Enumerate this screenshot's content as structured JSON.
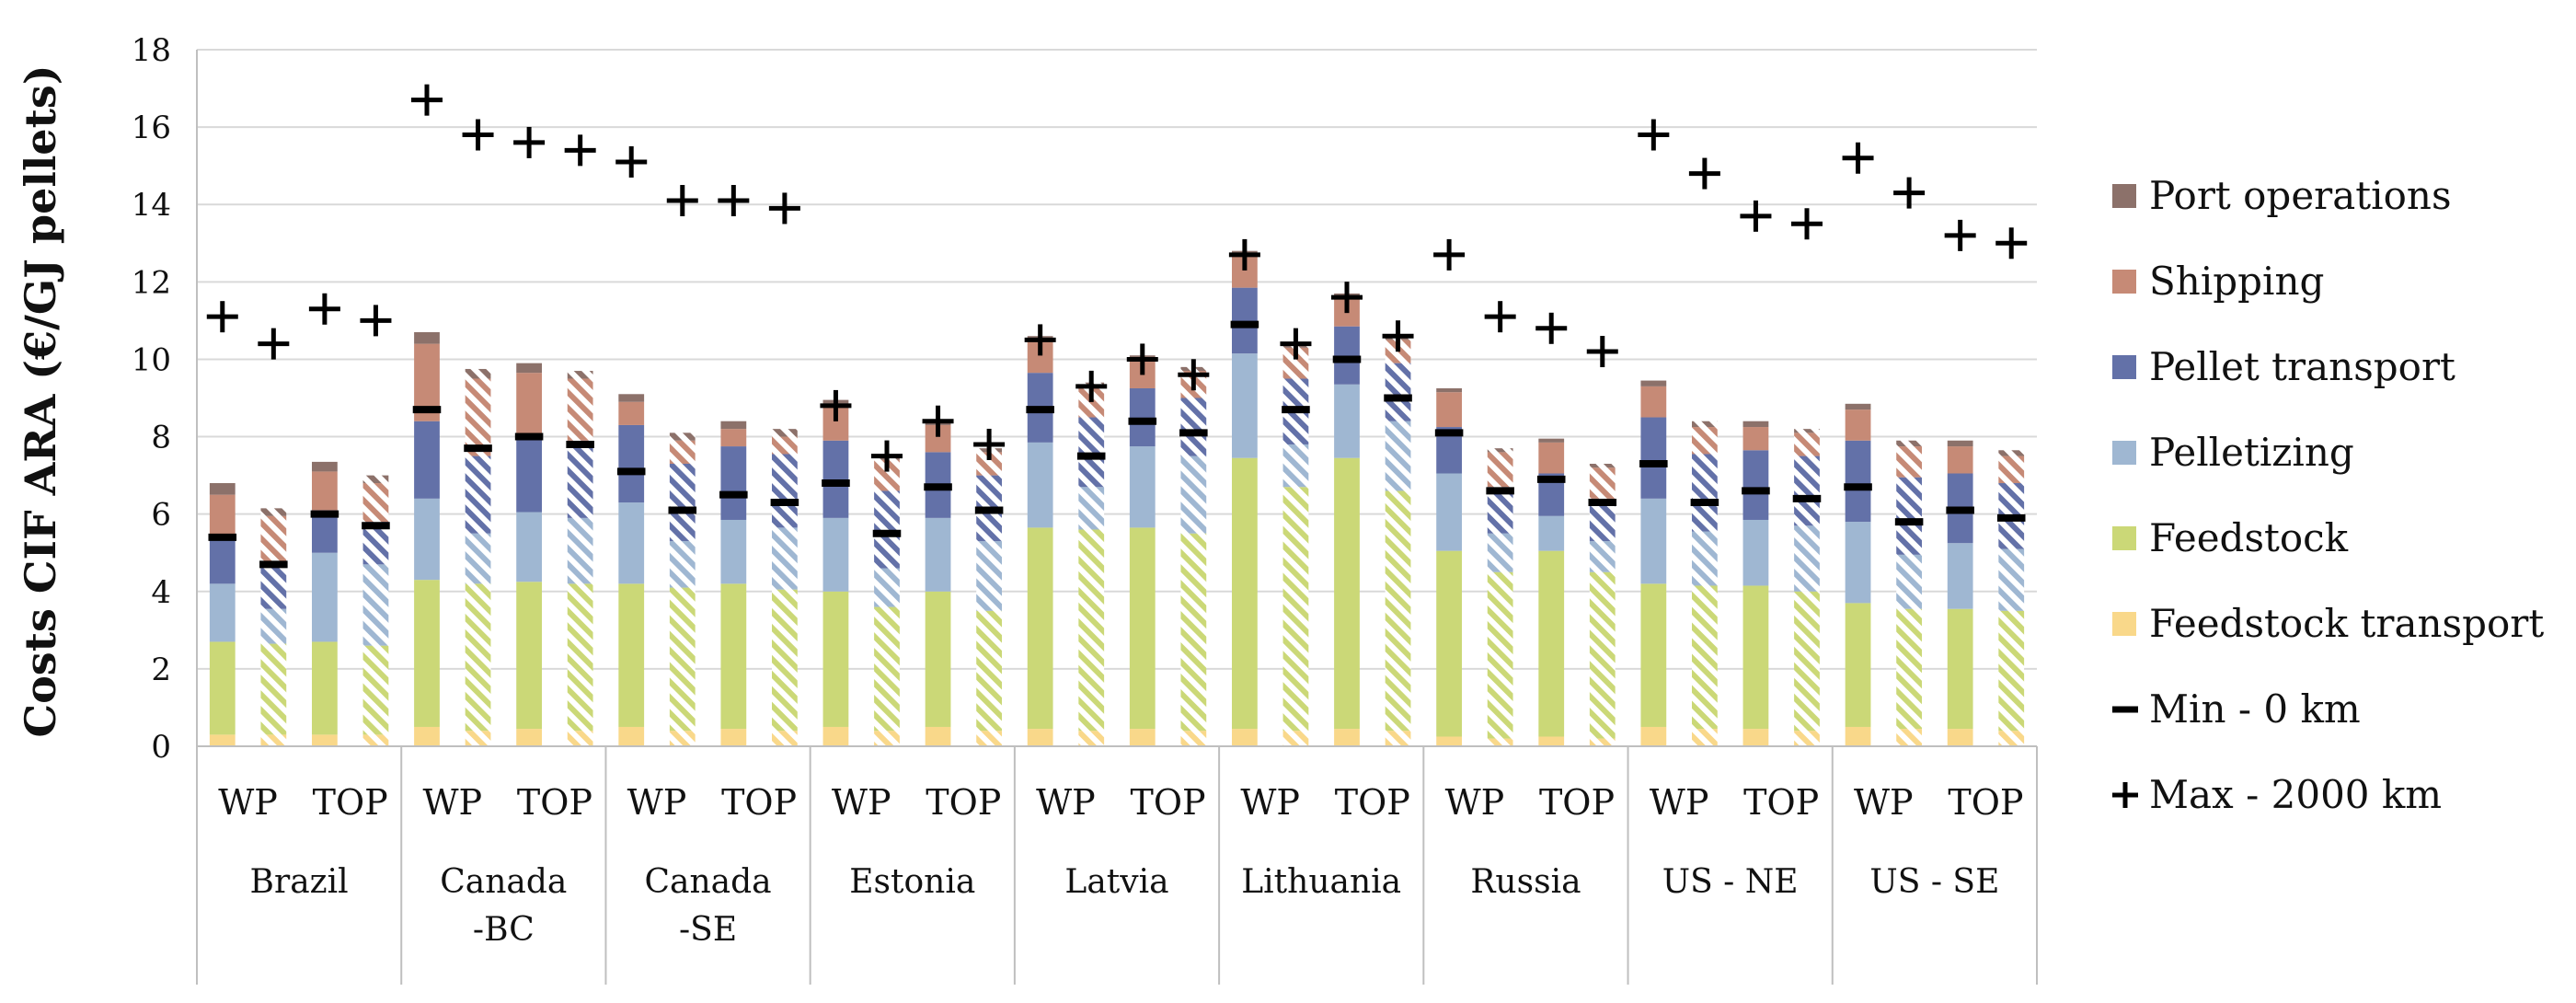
{
  "chart_data": {
    "type": "bar",
    "stacked": true,
    "title": "",
    "xlabel": "",
    "ylabel": "Costs CIF ARA (€/GJ pellets)",
    "ylim": [
      0,
      18
    ],
    "yticks": [
      0,
      2,
      4,
      6,
      8,
      10,
      12,
      14,
      16,
      18
    ],
    "grid": true,
    "legend_position": "right",
    "colors": {
      "Port operations": "#8c716a",
      "Shipping": "#c68a76",
      "Pellet transport": "#6371a8",
      "Pelletizing": "#9fb7d2",
      "Feedstock": "#cbd877",
      "Feedstock transport": "#f9d88a",
      "marker": "#000000",
      "axis": "#bfbfbf"
    },
    "pattern_note": "Second bar of each pair drawn with diagonal hatching",
    "legend": [
      "Port operations",
      "Shipping",
      "Pellet transport",
      "Pelletizing",
      "Feedstock",
      "Feedstock transport",
      "Min - 0 km",
      "Max - 2000 km"
    ],
    "groups": [
      {
        "name": "Brazil",
        "name_lines": [
          "Brazil"
        ],
        "subgroups": [
          "WP",
          "TOP"
        ],
        "bars": [
          {
            "feedstock_transport": 0.3,
            "feedstock": 2.4,
            "pelletizing": 1.5,
            "pellet_transport": 1.2,
            "shipping": 1.1,
            "port_operations": 0.3,
            "min": 5.4,
            "max": 11.1,
            "hatched": false
          },
          {
            "feedstock_transport": 0.3,
            "feedstock": 2.35,
            "pelletizing": 0.9,
            "pellet_transport": 1.2,
            "shipping": 1.2,
            "port_operations": 0.2,
            "min": 4.7,
            "max": 10.4,
            "hatched": true
          },
          {
            "feedstock_transport": 0.3,
            "feedstock": 2.4,
            "pelletizing": 2.3,
            "pellet_transport": 1.1,
            "shipping": 1.0,
            "port_operations": 0.25,
            "min": 6.0,
            "max": 11.3,
            "hatched": false
          },
          {
            "feedstock_transport": 0.3,
            "feedstock": 2.3,
            "pelletizing": 2.1,
            "pellet_transport": 1.1,
            "shipping": 1.0,
            "port_operations": 0.2,
            "min": 5.7,
            "max": 11.0,
            "hatched": true
          }
        ]
      },
      {
        "name": "Canada -BC",
        "name_lines": [
          "Canada",
          "-BC"
        ],
        "subgroups": [
          "WP",
          "TOP"
        ],
        "bars": [
          {
            "feedstock_transport": 0.5,
            "feedstock": 3.8,
            "pelletizing": 2.1,
            "pellet_transport": 2.0,
            "shipping": 2.0,
            "port_operations": 0.3,
            "min": 8.7,
            "max": 16.7,
            "hatched": false
          },
          {
            "feedstock_transport": 0.4,
            "feedstock": 3.8,
            "pelletizing": 1.3,
            "pellet_transport": 2.0,
            "shipping": 2.0,
            "port_operations": 0.25,
            "min": 7.7,
            "max": 15.8,
            "hatched": true
          },
          {
            "feedstock_transport": 0.45,
            "feedstock": 3.8,
            "pelletizing": 1.8,
            "pellet_transport": 2.0,
            "shipping": 1.6,
            "port_operations": 0.25,
            "min": 8.0,
            "max": 15.6,
            "hatched": false
          },
          {
            "feedstock_transport": 0.4,
            "feedstock": 3.8,
            "pelletizing": 1.7,
            "pellet_transport": 2.0,
            "shipping": 1.6,
            "port_operations": 0.2,
            "min": 7.8,
            "max": 15.4,
            "hatched": true
          }
        ]
      },
      {
        "name": "Canada -SE",
        "name_lines": [
          "Canada",
          "-SE"
        ],
        "subgroups": [
          "WP",
          "TOP"
        ],
        "bars": [
          {
            "feedstock_transport": 0.5,
            "feedstock": 3.7,
            "pelletizing": 2.1,
            "pellet_transport": 2.0,
            "shipping": 0.6,
            "port_operations": 0.2,
            "min": 7.1,
            "max": 15.1,
            "hatched": false
          },
          {
            "feedstock_transport": 0.4,
            "feedstock": 3.7,
            "pelletizing": 1.2,
            "pellet_transport": 2.0,
            "shipping": 0.6,
            "port_operations": 0.2,
            "min": 6.1,
            "max": 14.1,
            "hatched": true
          },
          {
            "feedstock_transport": 0.45,
            "feedstock": 3.75,
            "pelletizing": 1.65,
            "pellet_transport": 1.9,
            "shipping": 0.45,
            "port_operations": 0.2,
            "min": 6.5,
            "max": 14.1,
            "hatched": false
          },
          {
            "feedstock_transport": 0.4,
            "feedstock": 3.65,
            "pelletizing": 1.6,
            "pellet_transport": 1.9,
            "shipping": 0.45,
            "port_operations": 0.2,
            "min": 6.3,
            "max": 13.9,
            "hatched": true
          }
        ]
      },
      {
        "name": "Estonia",
        "name_lines": [
          "Estonia"
        ],
        "subgroups": [
          "WP",
          "TOP"
        ],
        "bars": [
          {
            "feedstock_transport": 0.5,
            "feedstock": 3.5,
            "pelletizing": 1.9,
            "pellet_transport": 2.0,
            "shipping": 0.9,
            "port_operations": 0.15,
            "min": 6.8,
            "max": 8.8,
            "hatched": false
          },
          {
            "feedstock_transport": 0.4,
            "feedstock": 3.2,
            "pelletizing": 1.0,
            "pellet_transport": 2.0,
            "shipping": 0.8,
            "port_operations": 0.1,
            "min": 5.5,
            "max": 7.5,
            "hatched": true
          },
          {
            "feedstock_transport": 0.5,
            "feedstock": 3.5,
            "pelletizing": 1.9,
            "pellet_transport": 1.7,
            "shipping": 0.7,
            "port_operations": 0.15,
            "min": 6.7,
            "max": 8.4,
            "hatched": false
          },
          {
            "feedstock_transport": 0.4,
            "feedstock": 3.1,
            "pelletizing": 1.8,
            "pellet_transport": 1.7,
            "shipping": 0.6,
            "port_operations": 0.1,
            "min": 6.1,
            "max": 7.8,
            "hatched": true
          }
        ]
      },
      {
        "name": "Latvia",
        "name_lines": [
          "Latvia"
        ],
        "subgroups": [
          "WP",
          "TOP"
        ],
        "bars": [
          {
            "feedstock_transport": 0.45,
            "feedstock": 5.2,
            "pelletizing": 2.2,
            "pellet_transport": 1.8,
            "shipping": 0.8,
            "port_operations": 0.15,
            "min": 8.7,
            "max": 10.5,
            "hatched": false
          },
          {
            "feedstock_transport": 0.4,
            "feedstock": 5.2,
            "pelletizing": 1.1,
            "pellet_transport": 1.8,
            "shipping": 0.8,
            "port_operations": 0.1,
            "min": 7.5,
            "max": 9.3,
            "hatched": true
          },
          {
            "feedstock_transport": 0.45,
            "feedstock": 5.2,
            "pelletizing": 2.1,
            "pellet_transport": 1.5,
            "shipping": 0.7,
            "port_operations": 0.15,
            "min": 8.4,
            "max": 10.0,
            "hatched": false
          },
          {
            "feedstock_transport": 0.4,
            "feedstock": 5.1,
            "pelletizing": 2.0,
            "pellet_transport": 1.5,
            "shipping": 0.7,
            "port_operations": 0.1,
            "min": 8.1,
            "max": 9.6,
            "hatched": true
          }
        ]
      },
      {
        "name": "Lithuania",
        "name_lines": [
          "Lithuania"
        ],
        "subgroups": [
          "WP",
          "TOP"
        ],
        "bars": [
          {
            "feedstock_transport": 0.45,
            "feedstock": 7.0,
            "pelletizing": 2.7,
            "pellet_transport": 1.7,
            "shipping": 0.8,
            "port_operations": 0.15,
            "min": 10.9,
            "max": 12.7,
            "hatched": false
          },
          {
            "feedstock_transport": 0.4,
            "feedstock": 6.3,
            "pelletizing": 1.1,
            "pellet_transport": 1.7,
            "shipping": 0.8,
            "port_operations": 0.1,
            "min": 8.7,
            "max": 10.4,
            "hatched": true
          },
          {
            "feedstock_transport": 0.45,
            "feedstock": 7.0,
            "pelletizing": 1.9,
            "pellet_transport": 1.5,
            "shipping": 0.7,
            "port_operations": 0.15,
            "min": 10.0,
            "max": 11.6,
            "hatched": false
          },
          {
            "feedstock_transport": 0.4,
            "feedstock": 6.2,
            "pelletizing": 1.8,
            "pellet_transport": 1.5,
            "shipping": 0.6,
            "port_operations": 0.1,
            "min": 9.0,
            "max": 10.6,
            "hatched": true
          }
        ]
      },
      {
        "name": "Russia",
        "name_lines": [
          "Russia"
        ],
        "subgroups": [
          "WP",
          "TOP"
        ],
        "bars": [
          {
            "feedstock_transport": 0.25,
            "feedstock": 4.8,
            "pelletizing": 2.0,
            "pellet_transport": 1.2,
            "shipping": 0.9,
            "port_operations": 0.1,
            "min": 8.1,
            "max": 12.7,
            "hatched": false
          },
          {
            "feedstock_transport": 0.2,
            "feedstock": 4.3,
            "pelletizing": 1.0,
            "pellet_transport": 1.2,
            "shipping": 0.9,
            "port_operations": 0.1,
            "min": 6.6,
            "max": 11.1,
            "hatched": true
          },
          {
            "feedstock_transport": 0.25,
            "feedstock": 4.8,
            "pelletizing": 0.9,
            "pellet_transport": 1.1,
            "shipping": 0.8,
            "port_operations": 0.1,
            "min": 6.9,
            "max": 10.8,
            "hatched": false
          },
          {
            "feedstock_transport": 0.2,
            "feedstock": 4.3,
            "pelletizing": 0.8,
            "pellet_transport": 1.1,
            "shipping": 0.8,
            "port_operations": 0.1,
            "min": 6.3,
            "max": 10.2,
            "hatched": true
          }
        ]
      },
      {
        "name": "US - NE",
        "name_lines": [
          "US - NE"
        ],
        "subgroups": [
          "WP",
          "TOP"
        ],
        "bars": [
          {
            "feedstock_transport": 0.5,
            "feedstock": 3.7,
            "pelletizing": 2.2,
            "pellet_transport": 2.1,
            "shipping": 0.8,
            "port_operations": 0.15,
            "min": 7.3,
            "max": 15.8,
            "hatched": false
          },
          {
            "feedstock_transport": 0.45,
            "feedstock": 3.7,
            "pelletizing": 1.4,
            "pellet_transport": 2.0,
            "shipping": 0.7,
            "port_operations": 0.15,
            "min": 6.3,
            "max": 14.8,
            "hatched": true
          },
          {
            "feedstock_transport": 0.45,
            "feedstock": 3.7,
            "pelletizing": 1.7,
            "pellet_transport": 1.8,
            "shipping": 0.6,
            "port_operations": 0.15,
            "min": 6.6,
            "max": 13.7,
            "hatched": false
          },
          {
            "feedstock_transport": 0.4,
            "feedstock": 3.6,
            "pelletizing": 1.7,
            "pellet_transport": 1.8,
            "shipping": 0.6,
            "port_operations": 0.1,
            "min": 6.4,
            "max": 13.5,
            "hatched": true
          }
        ]
      },
      {
        "name": "US - SE",
        "name_lines": [
          "US - SE"
        ],
        "subgroups": [
          "WP",
          "TOP"
        ],
        "bars": [
          {
            "feedstock_transport": 0.5,
            "feedstock": 3.2,
            "pelletizing": 2.1,
            "pellet_transport": 2.1,
            "shipping": 0.8,
            "port_operations": 0.15,
            "min": 6.7,
            "max": 15.2,
            "hatched": false
          },
          {
            "feedstock_transport": 0.45,
            "feedstock": 3.1,
            "pelletizing": 1.4,
            "pellet_transport": 2.0,
            "shipping": 0.8,
            "port_operations": 0.15,
            "min": 5.8,
            "max": 14.3,
            "hatched": true
          },
          {
            "feedstock_transport": 0.45,
            "feedstock": 3.1,
            "pelletizing": 1.7,
            "pellet_transport": 1.8,
            "shipping": 0.7,
            "port_operations": 0.15,
            "min": 6.1,
            "max": 13.2,
            "hatched": false
          },
          {
            "feedstock_transport": 0.4,
            "feedstock": 3.1,
            "pelletizing": 1.6,
            "pellet_transport": 1.7,
            "shipping": 0.7,
            "port_operations": 0.15,
            "min": 5.9,
            "max": 13.0,
            "hatched": true
          }
        ]
      }
    ]
  }
}
